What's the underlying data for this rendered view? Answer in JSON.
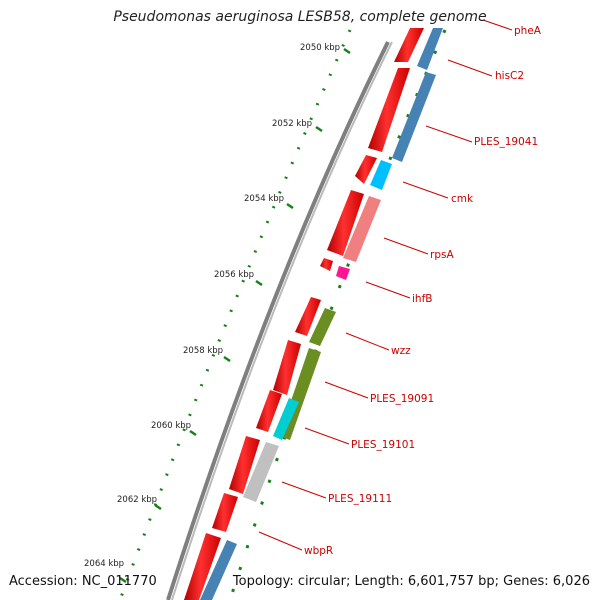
{
  "title": "Pseudomonas aeruginosa LESB58, complete genome",
  "footer": {
    "accession": "Accession: NC_011770",
    "summary": "Topology: circular; Length: 6,601,757 bp; Genes: 6,026"
  },
  "colors": {
    "backbone": "#7f7f7f",
    "tick": "#1a7f1a",
    "gene_label": "#cc0000",
    "strand_forward": "#ff1a1a",
    "hisC2_bar": "#4682b4",
    "cmk_bar": "#00bfff",
    "rpsA_bar": "#f08080",
    "ihfB_bar": "#ff1493",
    "wzz_bar": "#6b8e23",
    "PLES_19101_bar": "#00ced1",
    "PLES_19111_bar": "#c0c0c0"
  },
  "scale_labels": [
    "2050 kbp",
    "2052 kbp",
    "2054 kbp",
    "2056 kbp",
    "2058 kbp",
    "2060 kbp",
    "2062 kbp",
    "2064 kbp"
  ],
  "genes": [
    {
      "name": "pheA",
      "color": "#4682b4"
    },
    {
      "name": "hisC2",
      "color": "#4682b4"
    },
    {
      "name": "PLES_19041",
      "color": "#4682b4"
    },
    {
      "name": "cmk",
      "color": "#00bfff"
    },
    {
      "name": "rpsA",
      "color": "#f08080"
    },
    {
      "name": "ihfB",
      "color": "#ff1493"
    },
    {
      "name": "wzz",
      "color": "#6b8e23"
    },
    {
      "name": "PLES_19091",
      "color": "#6b8e23"
    },
    {
      "name": "PLES_19101",
      "color": "#00ced1"
    },
    {
      "name": "PLES_19111",
      "color": "#c0c0c0"
    },
    {
      "name": "wbpR",
      "color": "#4682b4"
    }
  ]
}
